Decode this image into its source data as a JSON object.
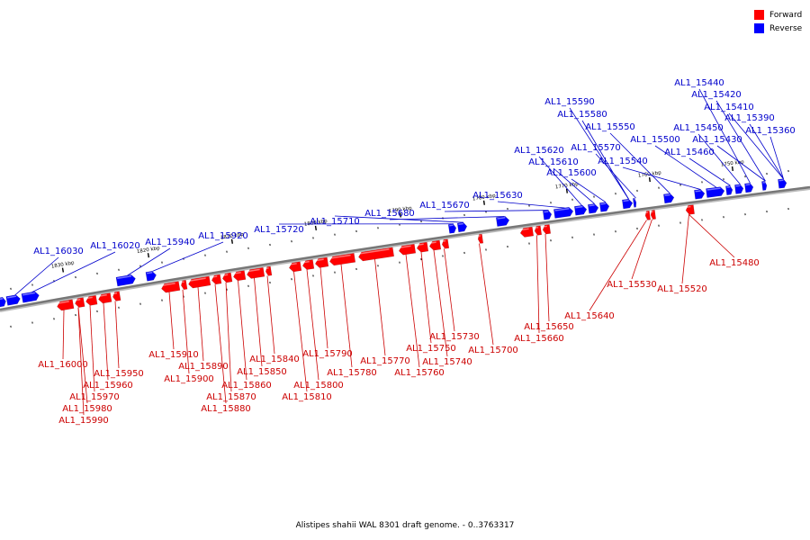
{
  "colors": {
    "forward": "#ff0000",
    "reverse": "#0000ff",
    "backbone": "#777777",
    "label_forward": "#cc0000",
    "label_reverse": "#0000cc"
  },
  "legend": [
    {
      "label": "Forward",
      "color": "#ff0000"
    },
    {
      "label": "Reverse",
      "color": "#0000ff"
    }
  ],
  "caption": "Alistipes shahii WAL 8301 draft genome. - 0..3763317",
  "kbp_labels": [
    "1830 kbp",
    "1820 kbp",
    "1810 kbp",
    "1800 kbp",
    "1790 kbp",
    "1780 kbp",
    "1770 kbp",
    "1760 kbp",
    "1750 kbp"
  ],
  "reverse_labels": [
    "AL1_16030",
    "AL1_16020",
    "AL1_15940",
    "AL1_15920",
    "AL1_15720",
    "AL1_15710",
    "AL1_15680",
    "AL1_15670",
    "AL1_15630",
    "AL1_15620",
    "AL1_15610",
    "AL1_15600",
    "AL1_15590",
    "AL1_15580",
    "AL1_15570",
    "AL1_15550",
    "AL1_15540",
    "AL1_15500",
    "AL1_15460",
    "AL1_15450",
    "AL1_15440",
    "AL1_15430",
    "AL1_15420",
    "AL1_15410",
    "AL1_15390",
    "AL1_15360"
  ],
  "forward_labels": [
    "AL1_16000",
    "AL1_15990",
    "AL1_15980",
    "AL1_15970",
    "AL1_15960",
    "AL1_15950",
    "AL1_15910",
    "AL1_15900",
    "AL1_15890",
    "AL1_15880",
    "AL1_15870",
    "AL1_15860",
    "AL1_15850",
    "AL1_15840",
    "AL1_15810",
    "AL1_15800",
    "AL1_15790",
    "AL1_15780",
    "AL1_15770",
    "AL1_15760",
    "AL1_15750",
    "AL1_15740",
    "AL1_15730",
    "AL1_15700",
    "AL1_15660",
    "AL1_15650",
    "AL1_15640",
    "AL1_15530",
    "AL1_15520",
    "AL1_15480"
  ]
}
